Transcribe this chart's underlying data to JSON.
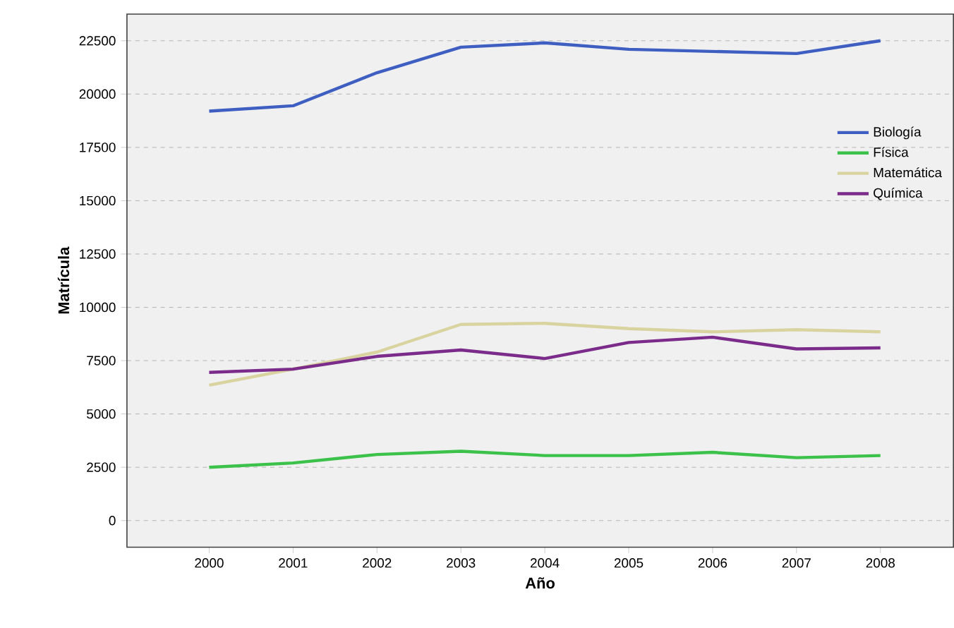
{
  "chart_data": {
    "type": "line",
    "xlabel": "Año",
    "ylabel": "Matrícula",
    "categories": [
      "2000",
      "2001",
      "2002",
      "2003",
      "2004",
      "2005",
      "2006",
      "2007",
      "2008"
    ],
    "series": [
      {
        "name": "Biología",
        "color": "#3e5fc1",
        "values": [
          19200,
          19450,
          21000,
          22200,
          22400,
          22100,
          22000,
          21900,
          22500
        ]
      },
      {
        "name": "Física",
        "color": "#3cc24a",
        "values": [
          2500,
          2700,
          3100,
          3250,
          3050,
          3050,
          3200,
          2950,
          3050
        ]
      },
      {
        "name": "Matemática",
        "color": "#d9d3a0",
        "values": [
          6350,
          7100,
          7900,
          9200,
          9250,
          9000,
          8850,
          8950,
          8850
        ]
      },
      {
        "name": "Química",
        "color": "#7b2b8a",
        "values": [
          6950,
          7100,
          7700,
          8000,
          7600,
          8350,
          8600,
          8050,
          8100
        ]
      }
    ],
    "ylim": [
      -1250,
      23750
    ],
    "yticks": [
      0,
      2500,
      5000,
      7500,
      10000,
      12500,
      15000,
      17500,
      20000,
      22500
    ],
    "grid": "y",
    "legend": "right"
  }
}
